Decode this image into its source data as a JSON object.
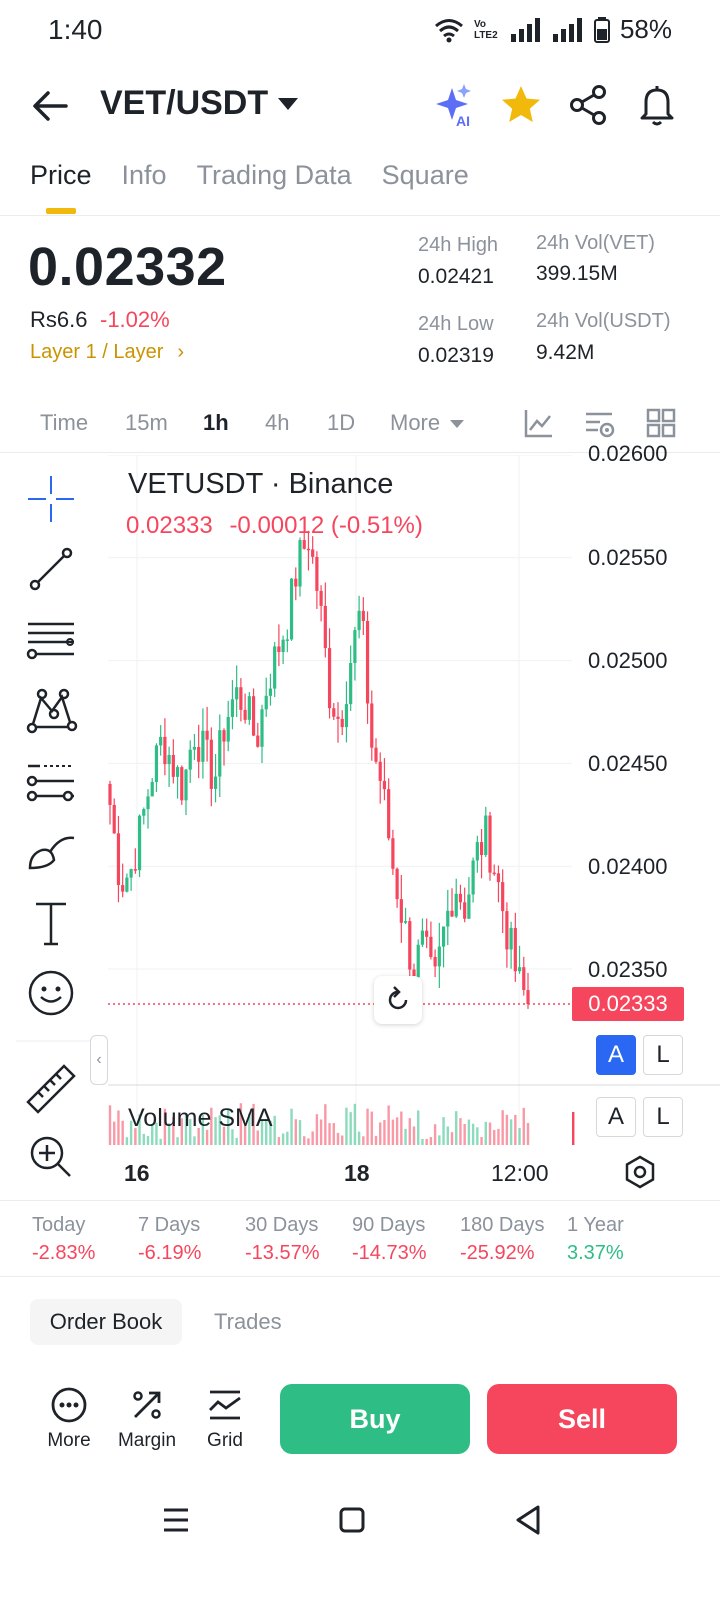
{
  "status_bar": {
    "time": "1:40",
    "volte": "Vo LTE2",
    "battery": "58%"
  },
  "header": {
    "title": "VET/USDT",
    "ai_label": "AI",
    "icons": [
      "back-arrow-icon",
      "ai-sparkle-icon",
      "star-icon",
      "share-icon",
      "bell-icon"
    ]
  },
  "tabs": [
    "Price",
    "Info",
    "Trading Data",
    "Square"
  ],
  "price": {
    "last": "0.02332",
    "fiat": "Rs6.6",
    "change_pct": "-1.02%",
    "tag": "Layer 1 / Layer",
    "stats": {
      "high_label": "24h High",
      "high_value": "0.02421",
      "low_label": "24h Low",
      "low_value": "0.02319",
      "vol_base_label": "24h Vol(VET)",
      "vol_base_value": "399.15M",
      "vol_quote_label": "24h Vol(USDT)",
      "vol_quote_value": "9.42M"
    }
  },
  "intervals": {
    "items": [
      "Time",
      "15m",
      "1h",
      "4h",
      "1D",
      "More"
    ],
    "selected": "1h"
  },
  "chart": {
    "title": "VETUSDT · Binance",
    "ohlc_price": "0.02333",
    "ohlc_change": "-0.00012",
    "ohlc_pct": "(-0.51%)",
    "current_price_tag": "0.02333",
    "y_labels": [
      "0.02600",
      "0.02550",
      "0.02500",
      "0.02450",
      "0.02400",
      "0.02350"
    ],
    "x_labels": [
      "16",
      "18",
      "12:00"
    ],
    "volume_label": "Volume SMA",
    "scale_buttons": [
      "A",
      "L"
    ],
    "colors": {
      "up": "#2ebd85",
      "down": "#f6465d"
    }
  },
  "chart_data": {
    "type": "candlestick",
    "title": "VETUSDT · Binance",
    "x_ticks": [
      "16",
      "18",
      "12:00"
    ],
    "ylim": [
      0.023,
      0.026
    ],
    "y_ticks": [
      0.026,
      0.0255,
      0.025,
      0.0245,
      0.024,
      0.0235
    ],
    "last_price": 0.02333,
    "close_series": [
      0.0243,
      0.02392,
      0.02398,
      0.0242,
      0.02445,
      0.02462,
      0.0245,
      0.02438,
      0.02466,
      0.02455,
      0.02442,
      0.0247,
      0.02484,
      0.02478,
      0.0246,
      0.02488,
      0.02505,
      0.0252,
      0.02548,
      0.0256,
      0.0253,
      0.02485,
      0.0247,
      0.025,
      0.02525,
      0.0246,
      0.0244,
      0.02402,
      0.02375,
      0.0235,
      0.02362,
      0.0234,
      0.0237,
      0.02392,
      0.0238,
      0.02405,
      0.02415,
      0.02395,
      0.02368,
      0.02345,
      0.02333
    ]
  },
  "performance": [
    {
      "label": "Today",
      "value": "-2.83%",
      "dir": "neg"
    },
    {
      "label": "7 Days",
      "value": "-6.19%",
      "dir": "neg"
    },
    {
      "label": "30 Days",
      "value": "-13.57%",
      "dir": "neg"
    },
    {
      "label": "90 Days",
      "value": "-14.73%",
      "dir": "neg"
    },
    {
      "label": "180 Days",
      "value": "-25.92%",
      "dir": "neg"
    },
    {
      "label": "1 Year",
      "value": "3.37%",
      "dir": "pos"
    }
  ],
  "orderbook": {
    "tab1": "Order Book",
    "tab2": "Trades"
  },
  "actions": {
    "more": "More",
    "margin": "Margin",
    "grid": "Grid",
    "buy": "Buy",
    "sell": "Sell"
  }
}
